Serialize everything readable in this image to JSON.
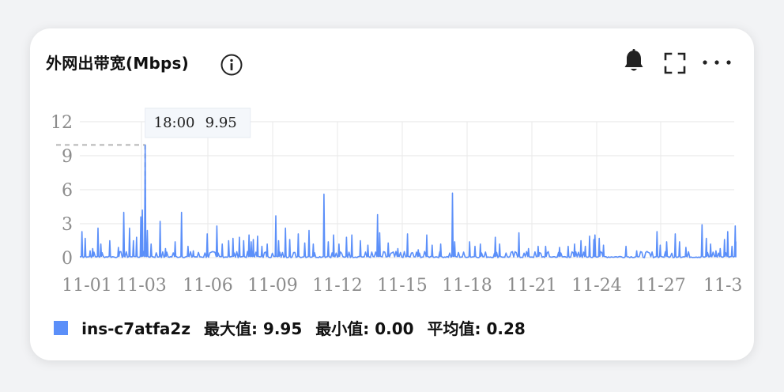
{
  "card": {
    "title": "外网出带宽(Mbps)",
    "icons": {
      "info": "info-icon",
      "alert": "bell-icon",
      "fullscreen": "expand-icon",
      "more": "more-icon"
    }
  },
  "chart_data": {
    "type": "line",
    "x_ticks": [
      "11-01",
      "11-03",
      "11-06",
      "11-09",
      "11-12",
      "11-15",
      "11-18",
      "11-21",
      "11-24",
      "11-27",
      "11-3"
    ],
    "y_ticks": [
      "0",
      "3",
      "6",
      "9",
      "12"
    ],
    "ylim": [
      0,
      12
    ],
    "grid": true,
    "series": [
      {
        "name": "ins-c7atfa2z",
        "color": "#5b8ff9",
        "peaks": [
          {
            "t": 0.1,
            "v": 2.3
          },
          {
            "t": 0.25,
            "v": 1.7
          },
          {
            "t": 0.48,
            "v": 0.6
          },
          {
            "t": 0.6,
            "v": 0.8
          },
          {
            "t": 0.85,
            "v": 2.6
          },
          {
            "t": 0.98,
            "v": 1.2
          },
          {
            "t": 1.4,
            "v": 1.5
          },
          {
            "t": 1.8,
            "v": 0.9
          },
          {
            "t": 2.05,
            "v": 4.0
          },
          {
            "t": 2.32,
            "v": 2.6
          },
          {
            "t": 2.5,
            "v": 1.5
          },
          {
            "t": 2.65,
            "v": 1.8
          },
          {
            "t": 2.85,
            "v": 3.6
          },
          {
            "t": 2.92,
            "v": 4.2
          },
          {
            "t": 3.05,
            "v": 9.95
          },
          {
            "t": 3.15,
            "v": 2.4
          },
          {
            "t": 3.33,
            "v": 1.2
          },
          {
            "t": 3.75,
            "v": 3.2
          },
          {
            "t": 4.0,
            "v": 0.8
          },
          {
            "t": 4.45,
            "v": 1.4
          },
          {
            "t": 4.75,
            "v": 4.0
          },
          {
            "t": 5.05,
            "v": 1.0
          },
          {
            "t": 5.3,
            "v": 0.6
          },
          {
            "t": 5.95,
            "v": 2.1
          },
          {
            "t": 6.4,
            "v": 2.8
          },
          {
            "t": 6.65,
            "v": 1.2
          },
          {
            "t": 6.95,
            "v": 1.5
          },
          {
            "t": 7.15,
            "v": 1.7
          },
          {
            "t": 7.45,
            "v": 1.8
          },
          {
            "t": 7.65,
            "v": 1.5
          },
          {
            "t": 7.9,
            "v": 2.0
          },
          {
            "t": 8.0,
            "v": 1.4
          },
          {
            "t": 8.1,
            "v": 1.6
          },
          {
            "t": 8.3,
            "v": 1.9
          },
          {
            "t": 8.5,
            "v": 1.0
          },
          {
            "t": 8.75,
            "v": 1.2
          },
          {
            "t": 9.15,
            "v": 3.7
          },
          {
            "t": 9.28,
            "v": 1.5
          },
          {
            "t": 9.6,
            "v": 2.6
          },
          {
            "t": 9.8,
            "v": 1.6
          },
          {
            "t": 10.2,
            "v": 2.1
          },
          {
            "t": 10.5,
            "v": 1.3
          },
          {
            "t": 10.7,
            "v": 2.4
          },
          {
            "t": 10.9,
            "v": 1.2
          },
          {
            "t": 11.4,
            "v": 5.6
          },
          {
            "t": 11.6,
            "v": 1.4
          },
          {
            "t": 11.85,
            "v": 2.0
          },
          {
            "t": 12.1,
            "v": 1.2
          },
          {
            "t": 12.45,
            "v": 1.8
          },
          {
            "t": 12.7,
            "v": 2.0
          },
          {
            "t": 13.1,
            "v": 1.5
          },
          {
            "t": 13.45,
            "v": 1.1
          },
          {
            "t": 13.9,
            "v": 3.8
          },
          {
            "t": 14.0,
            "v": 2.2
          },
          {
            "t": 14.4,
            "v": 1.3
          },
          {
            "t": 14.85,
            "v": 0.8
          },
          {
            "t": 15.3,
            "v": 2.1
          },
          {
            "t": 15.8,
            "v": 0.7
          },
          {
            "t": 16.2,
            "v": 2.0
          },
          {
            "t": 16.45,
            "v": 1.1
          },
          {
            "t": 16.85,
            "v": 1.2
          },
          {
            "t": 17.4,
            "v": 5.7
          },
          {
            "t": 17.5,
            "v": 1.4
          },
          {
            "t": 18.2,
            "v": 1.4
          },
          {
            "t": 18.45,
            "v": 1.0
          },
          {
            "t": 18.7,
            "v": 1.2
          },
          {
            "t": 19.4,
            "v": 1.8
          },
          {
            "t": 19.6,
            "v": 1.2
          },
          {
            "t": 20.5,
            "v": 2.2
          },
          {
            "t": 20.95,
            "v": 0.8
          },
          {
            "t": 21.4,
            "v": 1.0
          },
          {
            "t": 21.75,
            "v": 1.0
          },
          {
            "t": 22.4,
            "v": 0.9
          },
          {
            "t": 22.8,
            "v": 1.0
          },
          {
            "t": 23.1,
            "v": 1.2
          },
          {
            "t": 23.4,
            "v": 1.5
          },
          {
            "t": 23.6,
            "v": 1.0
          },
          {
            "t": 23.8,
            "v": 1.9
          },
          {
            "t": 24.0,
            "v": 1.6
          },
          {
            "t": 24.05,
            "v": 2.0
          },
          {
            "t": 24.25,
            "v": 1.7
          },
          {
            "t": 24.45,
            "v": 1.1
          },
          {
            "t": 25.5,
            "v": 1.0
          },
          {
            "t": 26.0,
            "v": 0.6
          },
          {
            "t": 26.95,
            "v": 2.3
          },
          {
            "t": 27.1,
            "v": 1.1
          },
          {
            "t": 27.4,
            "v": 1.4
          },
          {
            "t": 27.8,
            "v": 2.1
          },
          {
            "t": 28.0,
            "v": 1.4
          },
          {
            "t": 28.3,
            "v": 0.9
          },
          {
            "t": 29.05,
            "v": 2.9
          },
          {
            "t": 29.25,
            "v": 1.7
          },
          {
            "t": 29.45,
            "v": 1.2
          },
          {
            "t": 29.7,
            "v": 0.6
          },
          {
            "t": 29.9,
            "v": 0.8
          },
          {
            "t": 30.1,
            "v": 1.6
          },
          {
            "t": 30.25,
            "v": 2.3
          },
          {
            "t": 30.45,
            "v": 1.0
          },
          {
            "t": 30.6,
            "v": 2.8
          },
          {
            "t": 30.75,
            "v": 1.4
          }
        ]
      }
    ],
    "tooltip": {
      "time": "18:00",
      "value": "9.95",
      "t": 3.05
    },
    "legend": {
      "name": "ins-c7atfa2z",
      "max": "最大值: 9.95",
      "min": "最小值: 0.00",
      "avg": "平均值: 0.28"
    }
  }
}
